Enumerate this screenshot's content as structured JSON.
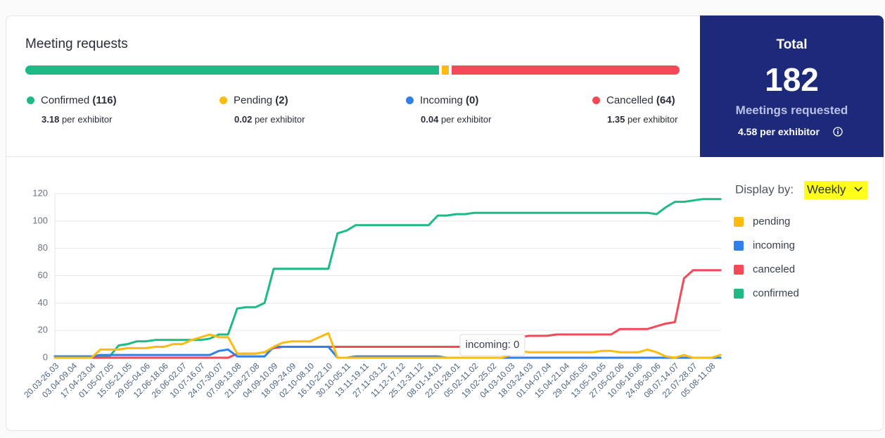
{
  "summary": {
    "title": "Meeting requests",
    "items": [
      {
        "label": "Confirmed",
        "count_label": "(116)",
        "count": 116,
        "rate": 3.18,
        "rate_unit": "per exhibitor",
        "color": "#1dba86"
      },
      {
        "label": "Pending",
        "count_label": "(2)",
        "count": 2,
        "rate": 0.02,
        "rate_unit": "per exhibitor",
        "color": "#fbbc0e"
      },
      {
        "label": "Incoming",
        "count_label": "(0)",
        "count": 0,
        "rate": 0.04,
        "rate_unit": "per exhibitor",
        "color": "#2f80ed"
      },
      {
        "label": "Cancelled",
        "count_label": "(64)",
        "count": 64,
        "rate": 1.35,
        "rate_unit": "per exhibitor",
        "color": "#f5495a"
      }
    ]
  },
  "total": {
    "title": "Total",
    "value": 182,
    "label": "Meetings requested",
    "rate": 4.58,
    "rate_unit": "per exhibitor"
  },
  "display": {
    "label": "Display by:",
    "value": "Weekly"
  },
  "chart_data": {
    "type": "line",
    "tooltip": "incoming: 0",
    "grid": true,
    "legend": "right",
    "ylim": [
      0,
      120
    ],
    "yticks": [
      0,
      20,
      40,
      60,
      80,
      100,
      120
    ],
    "categories": [
      "20.03-26.03",
      null,
      "03.04-09.04",
      null,
      "17.04-23.04",
      null,
      "01.05-07.05",
      null,
      "15.05-21.05",
      null,
      "29.05-04.06",
      null,
      "12.06-18.06",
      null,
      "26.06-02.07",
      null,
      "10.07-16.07",
      null,
      "24.07-30.07",
      null,
      "07.08-13.08",
      null,
      "21.08-27.08",
      null,
      "04.09-10.09",
      null,
      "18.09-24.09",
      null,
      "02.10-08.10",
      null,
      "16.10-22.10",
      null,
      "30.10-05.11",
      null,
      "13.11-19.11",
      null,
      "27.11-03.12",
      null,
      "11.12-17.12",
      null,
      "25.12-31.12",
      null,
      "08.01-14.01",
      null,
      "22.01-28.01",
      null,
      "05.02-11.02",
      null,
      "19.02-25.02",
      null,
      "04.03-10.03",
      null,
      "18.03-24.03",
      null,
      "01.04-07.04",
      null,
      "15.04-21.04",
      null,
      "29.04-05.05",
      null,
      "13.05-19.05",
      null,
      "27.05-02.06",
      null,
      "10.06-16.06",
      null,
      "24.06-30.06",
      null,
      "08.07-14.07",
      null,
      "22.07-28.07",
      null,
      "05.08-11.08",
      null
    ],
    "series": [
      {
        "name": "pending",
        "color": "#fbbc0e",
        "values": [
          0,
          0,
          0,
          0,
          0,
          6,
          6,
          6,
          7,
          7,
          7,
          8,
          8,
          10,
          10,
          13,
          15,
          17,
          15,
          15,
          3,
          3,
          3,
          4,
          8,
          11,
          12,
          12,
          12,
          15,
          18,
          0,
          0,
          0,
          0,
          0,
          0,
          0,
          0,
          0,
          0,
          0,
          0,
          0,
          0,
          0,
          0,
          0,
          0,
          0,
          2,
          5,
          4,
          4,
          4,
          4,
          4,
          4,
          4,
          4,
          5,
          5,
          4,
          4,
          4,
          6,
          4,
          1,
          0,
          2,
          0,
          0,
          0,
          2
        ]
      },
      {
        "name": "incoming",
        "color": "#2f80ed",
        "values": [
          1,
          1,
          1,
          1,
          1,
          2,
          2,
          2,
          2,
          2,
          2,
          2,
          2,
          2,
          2,
          2,
          2,
          2,
          5,
          6,
          1,
          1,
          1,
          1,
          8,
          8,
          8,
          8,
          8,
          8,
          8,
          0,
          0,
          1,
          1,
          1,
          1,
          1,
          1,
          1,
          1,
          1,
          1,
          0,
          0,
          0,
          0,
          0,
          0,
          0,
          0,
          0,
          0,
          0,
          0,
          0,
          0,
          0,
          0,
          0,
          0,
          0,
          0,
          0,
          0,
          0,
          0,
          0,
          0,
          0,
          0,
          0,
          0,
          0
        ]
      },
      {
        "name": "canceled",
        "color": "#f5495a",
        "values": [
          0,
          0,
          0,
          0,
          0,
          0,
          0,
          0,
          0,
          0,
          0,
          0,
          0,
          0,
          0,
          0,
          0,
          0,
          0,
          0,
          3,
          3,
          3,
          4,
          7,
          8,
          8,
          8,
          8,
          8,
          8,
          8,
          8,
          8,
          8,
          8,
          8,
          8,
          8,
          8,
          8,
          8,
          8,
          8,
          8,
          8,
          8,
          8,
          8,
          8,
          8,
          15,
          16,
          16,
          16,
          17,
          17,
          17,
          17,
          17,
          17,
          17,
          21,
          21,
          21,
          21,
          23,
          25,
          26,
          58,
          64,
          64,
          64,
          64
        ]
      },
      {
        "name": "confirmed",
        "color": "#1dba86",
        "values": [
          1,
          1,
          1,
          1,
          1,
          1,
          1,
          9,
          10,
          12,
          12,
          13,
          13,
          13,
          13,
          13,
          13,
          14,
          17,
          17,
          36,
          37,
          37,
          40,
          65,
          65,
          65,
          65,
          65,
          65,
          65,
          91,
          93,
          97,
          97,
          97,
          97,
          97,
          97,
          97,
          97,
          97,
          104,
          104,
          105,
          105,
          106,
          106,
          106,
          106,
          106,
          106,
          106,
          106,
          106,
          106,
          106,
          106,
          106,
          106,
          106,
          106,
          106,
          106,
          106,
          106,
          105,
          110,
          114,
          114,
          115,
          116,
          116,
          116
        ]
      }
    ]
  }
}
